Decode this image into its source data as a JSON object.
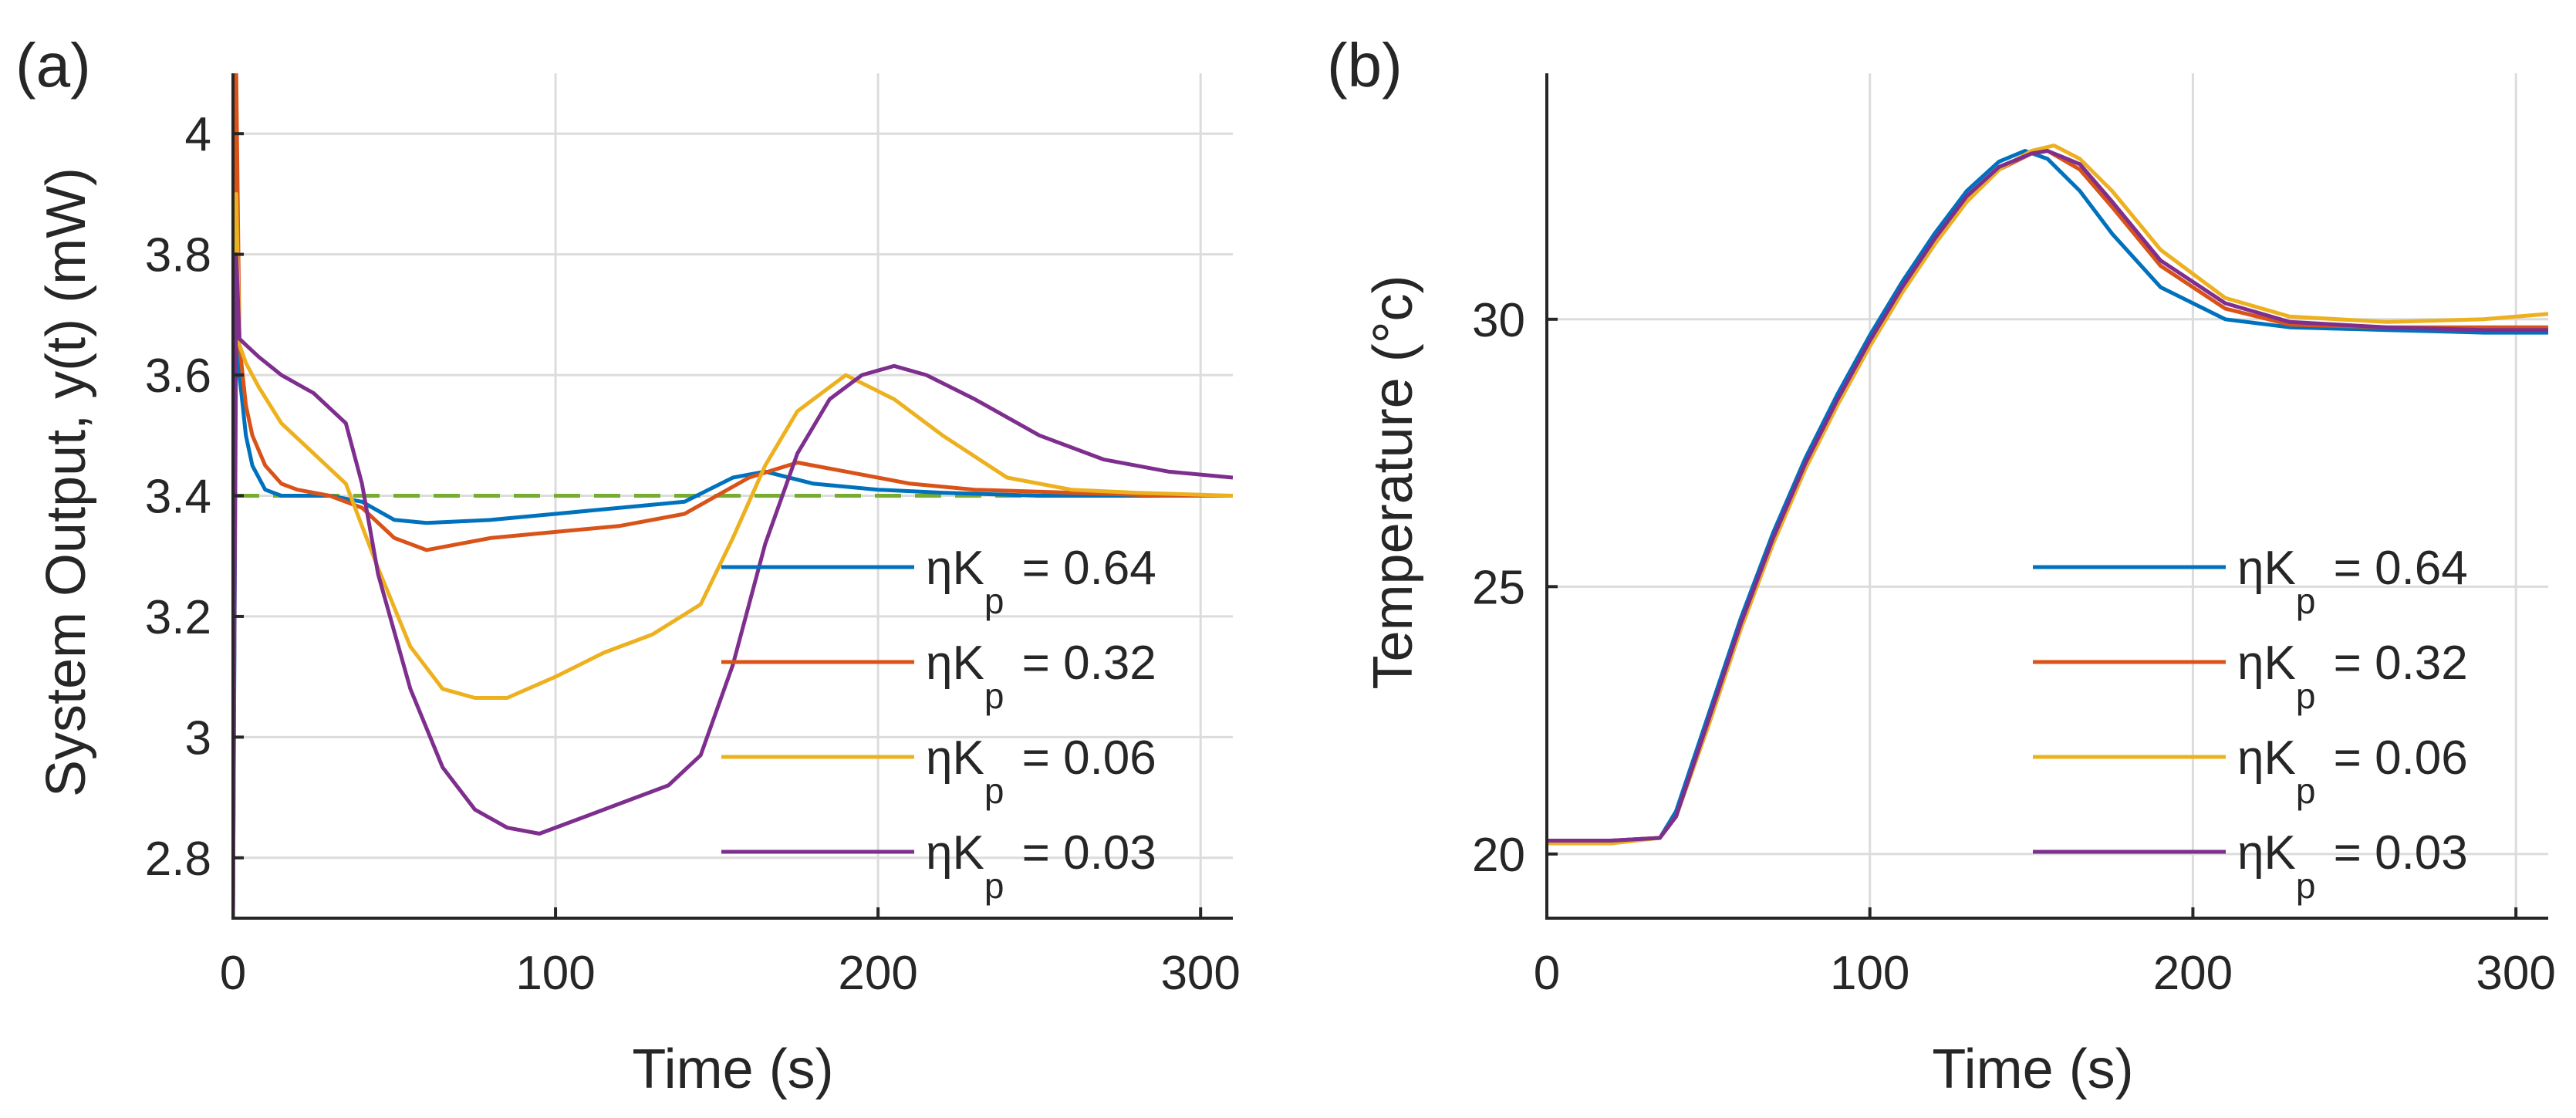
{
  "colors": {
    "blue": "#0072BD",
    "orange": "#D95319",
    "yellow": "#EDB120",
    "purple": "#7E2F8E",
    "green": "#77AC30"
  },
  "chart_data": [
    {
      "panel_label": "(a)",
      "type": "line",
      "xlabel": "Time (s)",
      "ylabel": "System Output, y(t) (mW)",
      "xlim": [
        0,
        310
      ],
      "ylim": [
        2.7,
        4.1
      ],
      "xticks": [
        0,
        100,
        200,
        300
      ],
      "yticks": [
        2.8,
        3.0,
        3.2,
        3.4,
        3.6,
        3.8,
        4.0
      ],
      "ytick_labels": [
        "2.8",
        "3",
        "3.2",
        "3.4",
        "3.6",
        "3.8",
        "4"
      ],
      "grid": true,
      "legend": "lower-right",
      "reference": {
        "y": 3.4,
        "color": "#77AC30",
        "style": "dashed"
      },
      "series": [
        {
          "name": "ηKp = 0.64",
          "legend_prefix": "ηK",
          "legend_sub": "p",
          "legend_value": " = 0.64",
          "color": "#0072BD",
          "x": [
            0,
            1,
            2,
            4,
            6,
            10,
            15,
            20,
            30,
            40,
            50,
            60,
            80,
            100,
            120,
            140,
            155,
            165,
            180,
            200,
            220,
            250,
            280,
            310
          ],
          "y": [
            2.7,
            3.7,
            3.6,
            3.5,
            3.45,
            3.41,
            3.4,
            3.4,
            3.4,
            3.39,
            3.36,
            3.355,
            3.36,
            3.37,
            3.38,
            3.39,
            3.43,
            3.44,
            3.42,
            3.41,
            3.405,
            3.4,
            3.4,
            3.4
          ]
        },
        {
          "name": "ηKp = 0.32",
          "legend_prefix": "ηK",
          "legend_sub": "p",
          "legend_value": " = 0.32",
          "color": "#D95319",
          "x": [
            0,
            1,
            2,
            4,
            6,
            10,
            15,
            20,
            30,
            40,
            50,
            60,
            80,
            100,
            120,
            140,
            160,
            175,
            190,
            210,
            230,
            260,
            290,
            310
          ],
          "y": [
            2.7,
            4.1,
            3.65,
            3.55,
            3.5,
            3.45,
            3.42,
            3.41,
            3.4,
            3.38,
            3.33,
            3.31,
            3.33,
            3.34,
            3.35,
            3.37,
            3.43,
            3.455,
            3.44,
            3.42,
            3.41,
            3.405,
            3.4,
            3.4
          ]
        },
        {
          "name": "ηKp = 0.06",
          "legend_prefix": "ηK",
          "legend_sub": "p",
          "legend_value": " = 0.06",
          "color": "#EDB120",
          "x": [
            0,
            1,
            2,
            4,
            8,
            15,
            25,
            35,
            45,
            55,
            65,
            75,
            85,
            100,
            115,
            130,
            145,
            155,
            165,
            175,
            190,
            205,
            220,
            240,
            260,
            280,
            310
          ],
          "y": [
            2.7,
            3.9,
            3.65,
            3.62,
            3.58,
            3.52,
            3.47,
            3.42,
            3.28,
            3.15,
            3.08,
            3.065,
            3.065,
            3.1,
            3.14,
            3.17,
            3.22,
            3.33,
            3.45,
            3.54,
            3.6,
            3.56,
            3.5,
            3.43,
            3.41,
            3.405,
            3.4
          ]
        },
        {
          "name": "ηKp = 0.03",
          "legend_prefix": "ηK",
          "legend_sub": "p",
          "legend_value": " = 0.03",
          "color": "#7E2F8E",
          "x": [
            0,
            1,
            2,
            4,
            8,
            15,
            25,
            35,
            40,
            45,
            55,
            65,
            75,
            85,
            95,
            105,
            120,
            135,
            145,
            155,
            165,
            175,
            185,
            195,
            205,
            215,
            230,
            250,
            270,
            290,
            310
          ],
          "y": [
            2.7,
            3.8,
            3.66,
            3.65,
            3.63,
            3.6,
            3.57,
            3.52,
            3.42,
            3.27,
            3.08,
            2.95,
            2.88,
            2.85,
            2.84,
            2.86,
            2.89,
            2.92,
            2.97,
            3.12,
            3.32,
            3.47,
            3.56,
            3.6,
            3.615,
            3.6,
            3.56,
            3.5,
            3.46,
            3.44,
            3.43
          ]
        }
      ]
    },
    {
      "panel_label": "(b)",
      "type": "line",
      "xlabel": "Time (s)",
      "ylabel": "Temperature (°c)",
      "xlim": [
        0,
        310
      ],
      "ylim": [
        18.8,
        34.6
      ],
      "xticks": [
        0,
        100,
        200,
        300
      ],
      "yticks": [
        20,
        25,
        30
      ],
      "ytick_labels": [
        "20",
        "25",
        "30"
      ],
      "grid": true,
      "legend": "lower-right",
      "series": [
        {
          "name": "ηKp = 0.64",
          "legend_prefix": "ηK",
          "legend_sub": "p",
          "legend_value": " = 0.64",
          "color": "#0072BD",
          "x": [
            0,
            20,
            35,
            40,
            50,
            60,
            70,
            80,
            90,
            100,
            110,
            120,
            130,
            140,
            148,
            155,
            165,
            175,
            190,
            210,
            230,
            260,
            290,
            310
          ],
          "y": [
            20.25,
            20.25,
            20.3,
            20.8,
            22.6,
            24.4,
            26.0,
            27.4,
            28.6,
            29.7,
            30.7,
            31.6,
            32.4,
            32.95,
            33.15,
            33.0,
            32.4,
            31.6,
            30.6,
            30.0,
            29.85,
            29.8,
            29.75,
            29.75
          ]
        },
        {
          "name": "ηKp = 0.32",
          "legend_prefix": "ηK",
          "legend_sub": "p",
          "legend_value": " = 0.32",
          "color": "#D95319",
          "x": [
            0,
            20,
            35,
            40,
            50,
            60,
            70,
            80,
            90,
            100,
            110,
            120,
            130,
            140,
            150,
            155,
            165,
            175,
            190,
            210,
            230,
            260,
            290,
            310
          ],
          "y": [
            20.25,
            20.25,
            20.3,
            20.7,
            22.4,
            24.2,
            25.8,
            27.2,
            28.4,
            29.5,
            30.5,
            31.4,
            32.2,
            32.8,
            33.1,
            33.15,
            32.8,
            32.1,
            31.0,
            30.2,
            29.9,
            29.85,
            29.85,
            29.85
          ]
        },
        {
          "name": "ηKp = 0.06",
          "legend_prefix": "ηK",
          "legend_sub": "p",
          "legend_value": " = 0.06",
          "color": "#EDB120",
          "x": [
            0,
            20,
            35,
            40,
            50,
            60,
            70,
            80,
            90,
            100,
            110,
            120,
            130,
            140,
            150,
            157,
            165,
            175,
            190,
            210,
            230,
            260,
            290,
            310
          ],
          "y": [
            20.2,
            20.2,
            20.3,
            20.7,
            22.4,
            24.2,
            25.8,
            27.2,
            28.4,
            29.5,
            30.5,
            31.4,
            32.2,
            32.8,
            33.15,
            33.25,
            33.0,
            32.4,
            31.3,
            30.4,
            30.05,
            29.95,
            30.0,
            30.1
          ]
        },
        {
          "name": "ηKp = 0.03",
          "legend_prefix": "ηK",
          "legend_sub": "p",
          "legend_value": " = 0.03",
          "color": "#7E2F8E",
          "x": [
            0,
            20,
            35,
            40,
            50,
            60,
            70,
            80,
            90,
            100,
            110,
            120,
            130,
            140,
            150,
            155,
            165,
            175,
            190,
            210,
            230,
            260,
            290,
            310
          ],
          "y": [
            20.25,
            20.25,
            20.3,
            20.7,
            22.5,
            24.3,
            25.9,
            27.3,
            28.5,
            29.6,
            30.6,
            31.5,
            32.3,
            32.85,
            33.1,
            33.15,
            32.9,
            32.2,
            31.1,
            30.3,
            29.95,
            29.85,
            29.8,
            29.8
          ]
        }
      ]
    }
  ]
}
